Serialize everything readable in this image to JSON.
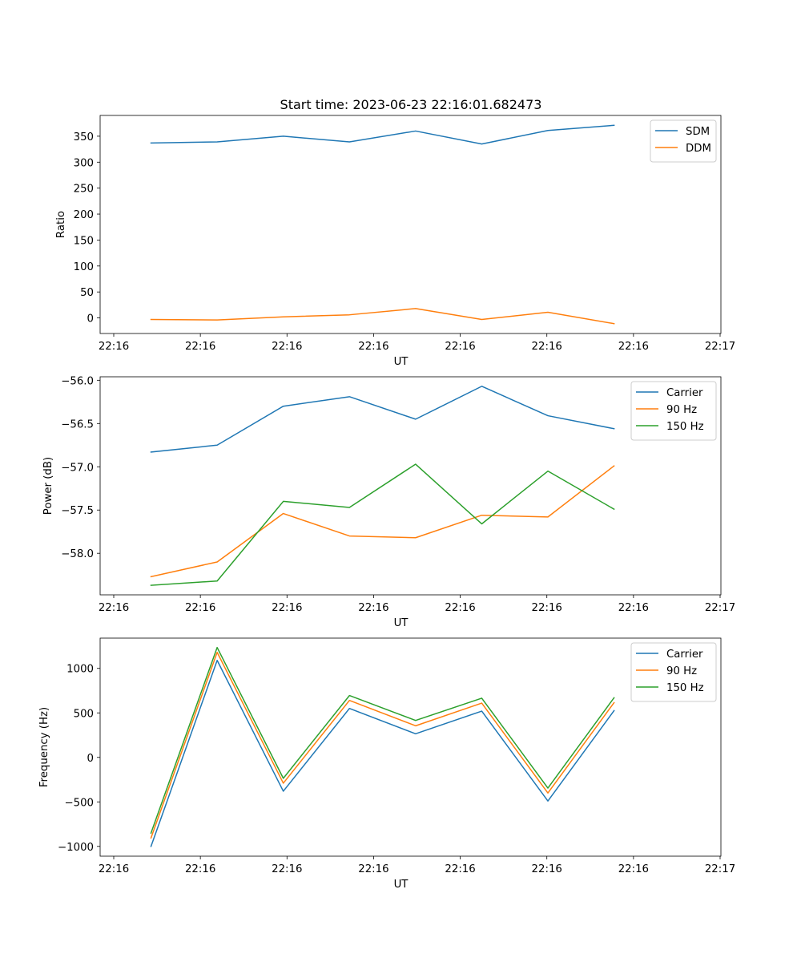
{
  "figure": {
    "title": "Start time: 2023-06-23 22:16:01.682473"
  },
  "chart_data": [
    {
      "type": "line",
      "xlabel": "UT",
      "ylabel": "Ratio",
      "x_tick_labels": [
        "22:16",
        "22:16",
        "22:16",
        "22:16",
        "22:16",
        "22:16",
        "22:16"
      ],
      "x_tick_label_end": "22:17",
      "xlim": [
        -0.5,
        5.6
      ],
      "x": [
        0,
        0.65,
        1.3,
        1.95,
        2.6,
        3.25,
        3.9,
        4.55
      ],
      "ylim": [
        -30,
        390
      ],
      "yticks": [
        0,
        50,
        100,
        150,
        200,
        250,
        300,
        350
      ],
      "y_tick_labels": [
        "0",
        "50",
        "100",
        "150",
        "200",
        "250",
        "300",
        "350"
      ],
      "legend_position": "upper-right",
      "series": [
        {
          "name": "SDM",
          "color": "#1f77b4",
          "values": [
            337,
            339,
            350,
            339,
            360,
            335,
            361,
            371
          ]
        },
        {
          "name": "DDM",
          "color": "#ff7f0e",
          "values": [
            -3,
            -4,
            2,
            6,
            18,
            -3,
            11,
            -11
          ]
        }
      ]
    },
    {
      "type": "line",
      "xlabel": "UT",
      "ylabel": "Power (dB)",
      "x_tick_labels": [
        "22:16",
        "22:16",
        "22:16",
        "22:16",
        "22:16",
        "22:16",
        "22:16"
      ],
      "x_tick_label_end": "22:17",
      "xlim": [
        -0.5,
        5.6
      ],
      "x": [
        0,
        0.65,
        1.3,
        1.95,
        2.6,
        3.25,
        3.9,
        4.55
      ],
      "ylim": [
        -58.48,
        -55.96
      ],
      "yticks": [
        -58.0,
        -57.5,
        -57.0,
        -56.5,
        -56.0
      ],
      "y_tick_labels": [
        "−58.0",
        "−57.5",
        "−57.0",
        "−56.5",
        "−56.0"
      ],
      "legend_position": "upper-right",
      "series": [
        {
          "name": "Carrier",
          "color": "#1f77b4",
          "values": [
            -56.83,
            -56.75,
            -56.3,
            -56.19,
            -56.45,
            -56.07,
            -56.41,
            -56.56
          ]
        },
        {
          "name": "90 Hz",
          "color": "#ff7f0e",
          "values": [
            -58.27,
            -58.1,
            -57.54,
            -57.8,
            -57.82,
            -57.56,
            -57.58,
            -56.99
          ]
        },
        {
          "name": "150 Hz",
          "color": "#2ca02c",
          "values": [
            -58.37,
            -58.32,
            -57.4,
            -57.47,
            -56.97,
            -57.66,
            -57.05,
            -57.49
          ]
        }
      ]
    },
    {
      "type": "line",
      "xlabel": "UT",
      "ylabel": "Frequency (Hz)",
      "x_tick_labels": [
        "22:16",
        "22:16",
        "22:16",
        "22:16",
        "22:16",
        "22:16",
        "22:16"
      ],
      "x_tick_label_end": "22:17",
      "xlim": [
        -0.5,
        5.6
      ],
      "x": [
        0,
        0.65,
        1.3,
        1.95,
        2.6,
        3.25,
        3.9,
        4.55
      ],
      "ylim": [
        -1110,
        1340
      ],
      "yticks": [
        -1000,
        -500,
        0,
        500,
        1000
      ],
      "y_tick_labels": [
        "−1000",
        "−500",
        "0",
        "500",
        "1000"
      ],
      "legend_position": "upper-right",
      "series": [
        {
          "name": "Carrier",
          "color": "#1f77b4",
          "values": [
            -1000,
            1090,
            -380,
            550,
            265,
            520,
            -490,
            525
          ]
        },
        {
          "name": "90 Hz",
          "color": "#ff7f0e",
          "values": [
            -905,
            1180,
            -290,
            640,
            355,
            610,
            -400,
            615
          ]
        },
        {
          "name": "150 Hz",
          "color": "#2ca02c",
          "values": [
            -850,
            1235,
            -235,
            695,
            415,
            665,
            -345,
            670
          ]
        }
      ]
    }
  ]
}
